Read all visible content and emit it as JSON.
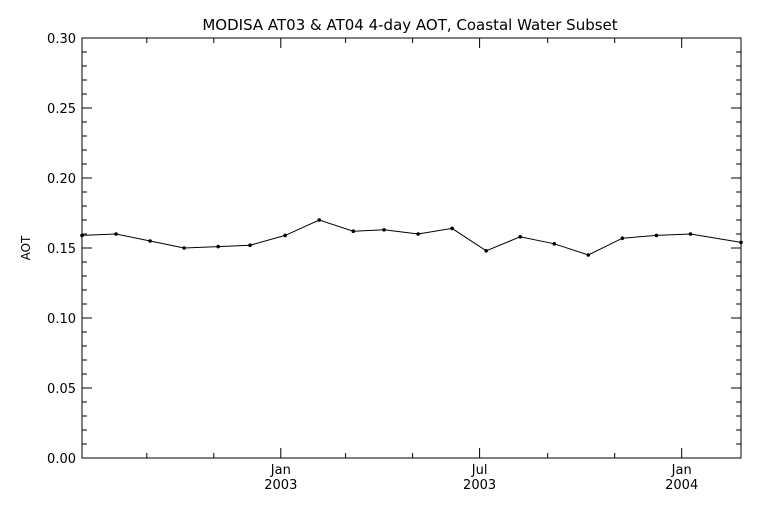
{
  "chart_data": {
    "type": "line",
    "title": "MODISA AT03 & AT04 4-day AOT, Coastal Water Subset",
    "xlabel": "",
    "ylabel": "AOT",
    "xlim": [
      "2002-07-04",
      "2004-02-24"
    ],
    "ylim": [
      0.0,
      0.3
    ],
    "y_ticks": [
      0.0,
      0.05,
      0.1,
      0.15,
      0.2,
      0.25,
      0.3
    ],
    "y_tick_labels": [
      "0.00",
      "0.05",
      "0.10",
      "0.15",
      "0.20",
      "0.25",
      "0.30"
    ],
    "x_ticks": [
      {
        "date": "2003-01-01",
        "month": "Jan",
        "year": "2003"
      },
      {
        "date": "2003-07-01",
        "month": "Jul",
        "year": "2003"
      },
      {
        "date": "2004-01-01",
        "month": "Jan",
        "year": "2004"
      }
    ],
    "series": [
      {
        "color": "#000000",
        "points": [
          {
            "x": "2002-07-04",
            "y": 0.159
          },
          {
            "x": "2002-08-04",
            "y": 0.16
          },
          {
            "x": "2002-09-04",
            "y": 0.155
          },
          {
            "x": "2002-10-05",
            "y": 0.15
          },
          {
            "x": "2002-11-05",
            "y": 0.151
          },
          {
            "x": "2002-12-04",
            "y": 0.152
          },
          {
            "x": "2003-01-05",
            "y": 0.159
          },
          {
            "x": "2003-02-05",
            "y": 0.17
          },
          {
            "x": "2003-03-08",
            "y": 0.162
          },
          {
            "x": "2003-04-05",
            "y": 0.163
          },
          {
            "x": "2003-05-06",
            "y": 0.16
          },
          {
            "x": "2003-06-06",
            "y": 0.164
          },
          {
            "x": "2003-07-07",
            "y": 0.148
          },
          {
            "x": "2003-08-07",
            "y": 0.158
          },
          {
            "x": "2003-09-07",
            "y": 0.153
          },
          {
            "x": "2003-10-08",
            "y": 0.145
          },
          {
            "x": "2003-11-08",
            "y": 0.157
          },
          {
            "x": "2003-12-09",
            "y": 0.159
          },
          {
            "x": "2004-01-09",
            "y": 0.16
          },
          {
            "x": "2004-02-24",
            "y": 0.154
          }
        ]
      }
    ]
  }
}
